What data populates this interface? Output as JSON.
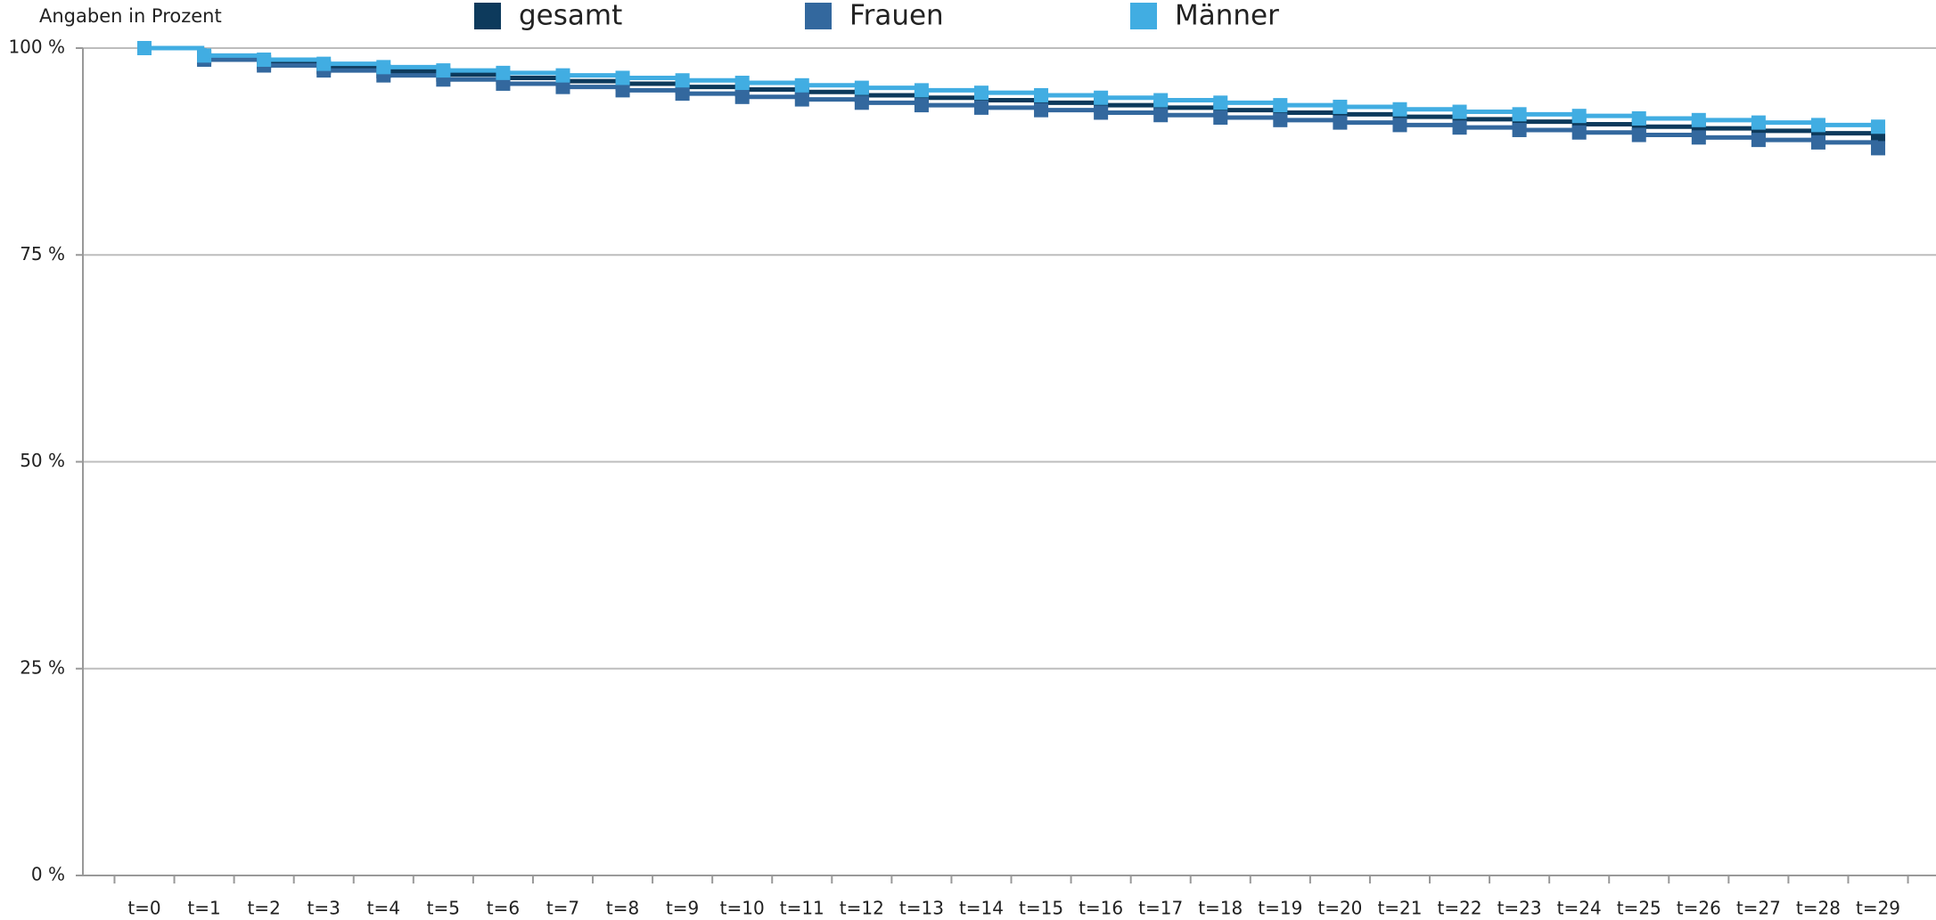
{
  "chart_data": {
    "type": "step",
    "y_axis_label": "Angaben in Prozent",
    "categories": [
      "t=0",
      "t=1",
      "t=2",
      "t=3",
      "t=4",
      "t=5",
      "t=6",
      "t=7",
      "t=8",
      "t=9",
      "t=10",
      "t=11",
      "t=12",
      "t=13",
      "t=14",
      "t=15",
      "t=16",
      "t=17",
      "t=18",
      "t=19",
      "t=20",
      "t=21",
      "t=22",
      "t=23",
      "t=24",
      "t=25",
      "t=26",
      "t=27",
      "t=28",
      "t=29"
    ],
    "series": [
      {
        "name": "gesamt",
        "color": "#0d3a5c",
        "values": [
          100,
          98.9,
          98.3,
          97.7,
          97.2,
          96.8,
          96.4,
          96.0,
          95.7,
          95.3,
          95.0,
          94.7,
          94.3,
          94.0,
          93.7,
          93.4,
          93.1,
          92.8,
          92.5,
          92.2,
          92.0,
          91.7,
          91.4,
          91.1,
          90.8,
          90.5,
          90.3,
          90.0,
          89.7,
          89.2
        ]
      },
      {
        "name": "Frauen",
        "color": "#33689e",
        "values": [
          100,
          98.6,
          97.9,
          97.3,
          96.7,
          96.2,
          95.7,
          95.3,
          94.9,
          94.5,
          94.1,
          93.8,
          93.4,
          93.1,
          92.8,
          92.5,
          92.2,
          91.9,
          91.6,
          91.3,
          91.0,
          90.7,
          90.4,
          90.1,
          89.8,
          89.5,
          89.2,
          88.9,
          88.6,
          87.9
        ]
      },
      {
        "name": "Männer",
        "color": "#41ade2",
        "values": [
          100,
          99.1,
          98.6,
          98.1,
          97.7,
          97.3,
          97.0,
          96.7,
          96.4,
          96.1,
          95.8,
          95.5,
          95.2,
          94.9,
          94.6,
          94.3,
          94.0,
          93.7,
          93.4,
          93.1,
          92.9,
          92.6,
          92.3,
          92.0,
          91.8,
          91.5,
          91.3,
          91.0,
          90.7,
          90.5
        ]
      }
    ],
    "ylim": [
      0,
      100
    ],
    "yticks": [
      {
        "value": 0,
        "label": "0 %"
      },
      {
        "value": 25,
        "label": "25 %"
      },
      {
        "value": 50,
        "label": "50 %"
      },
      {
        "value": 75,
        "label": "75 %"
      },
      {
        "value": 100,
        "label": "100 %"
      }
    ],
    "grid": true,
    "legend": "top"
  }
}
